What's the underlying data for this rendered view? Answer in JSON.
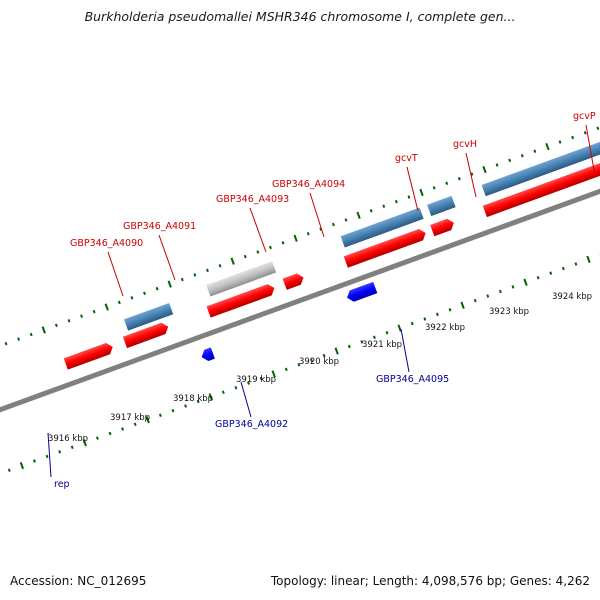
{
  "title": "Burkholderia pseudomallei MSHR346 chromosome I, complete gen...",
  "footer": {
    "accession": "Accession: NC_012695",
    "summary": "Topology: linear; Length: 4,098,576 bp; Genes: 4,262"
  },
  "ruler": {
    "ticks": [
      {
        "label": "3916 kbp"
      },
      {
        "label": "3917 kbp"
      },
      {
        "label": "3918 kbp"
      },
      {
        "label": "3919 kbp"
      },
      {
        "label": "3920 kbp"
      },
      {
        "label": "3921 kbp"
      },
      {
        "label": "3922 kbp"
      },
      {
        "label": "3923 kbp"
      },
      {
        "label": "3924 kbp"
      }
    ]
  },
  "features": [
    {
      "label": "rep",
      "color": "#000099"
    },
    {
      "label": "GBP346_A4090",
      "color": "#cc0000"
    },
    {
      "label": "GBP346_A4091",
      "color": "#cc0000"
    },
    {
      "label": "GBP346_A4092",
      "color": "#000099"
    },
    {
      "label": "GBP346_A4093",
      "color": "#cc0000"
    },
    {
      "label": "GBP346_A4094",
      "color": "#cc0000"
    },
    {
      "label": "GBP346_A4095",
      "color": "#000099"
    },
    {
      "label": "gcvT",
      "color": "#cc0000"
    },
    {
      "label": "gcvH",
      "color": "#cc0000"
    },
    {
      "label": "gcvP",
      "color": "#cc0000"
    }
  ],
  "colors": {
    "forward_cds": "#ff0000",
    "reverse_cds": "#0000ff",
    "gene_block": "#4682b4",
    "pseudo_block": "#c0c0c0",
    "rep_block": "#ff1493",
    "backbone": "#808080",
    "tick": "#006400"
  }
}
